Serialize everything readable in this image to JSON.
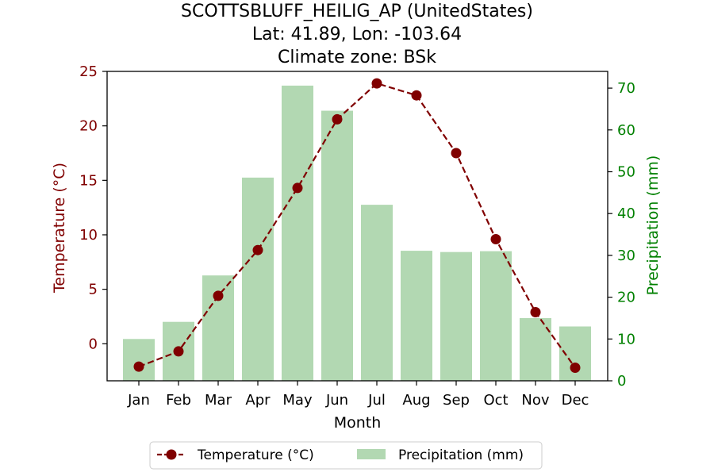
{
  "chart_data": {
    "type": "bar+line",
    "title": [
      "SCOTTSBLUFF_HEILIG_AP (UnitedStates)",
      "Lat: 41.89, Lon: -103.64",
      "Climate zone: BSk"
    ],
    "xlabel": "Month",
    "categories": [
      "Jan",
      "Feb",
      "Mar",
      "Apr",
      "May",
      "Jun",
      "Jul",
      "Aug",
      "Sep",
      "Oct",
      "Nov",
      "Dec"
    ],
    "temperature": {
      "name": "Temperature (°C)",
      "axis_label": "Temperature (°C)",
      "color": "#800000",
      "values": [
        -2.1,
        -0.7,
        4.4,
        8.6,
        14.3,
        20.6,
        23.9,
        22.8,
        17.5,
        9.6,
        2.9,
        -2.2
      ],
      "ylim": [
        -3.4,
        25.0
      ],
      "ticks": [
        0,
        5,
        10,
        15,
        20,
        25
      ]
    },
    "precipitation": {
      "name": "Precipitation (mm)",
      "axis_label": "Precipitation (mm)",
      "color": "#008000",
      "bar_color": "#b2d8b2",
      "values": [
        10.0,
        14.1,
        25.2,
        48.6,
        70.6,
        64.6,
        42.1,
        31.1,
        30.8,
        31.0,
        15.0,
        13.0
      ],
      "ylim": [
        0,
        74
      ],
      "ticks": [
        0,
        10,
        20,
        30,
        40,
        50,
        60,
        70
      ]
    },
    "legend": {
      "placement": "bottom-center",
      "entries": [
        "Temperature (°C)",
        "Precipitation (mm)"
      ]
    }
  }
}
